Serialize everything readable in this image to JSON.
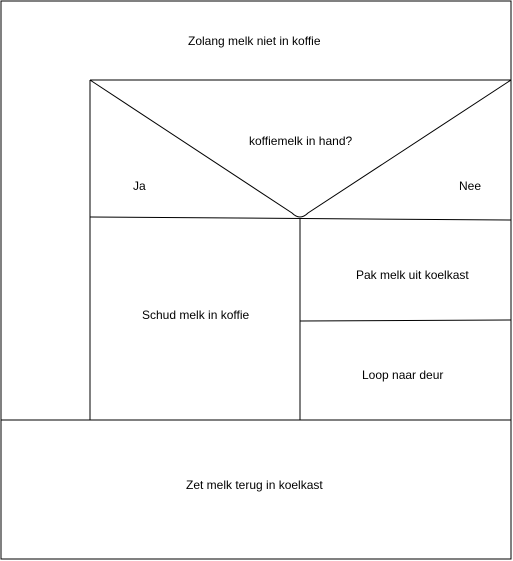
{
  "diagram": {
    "loop_label": "Zolang melk niet in koffie",
    "decision": {
      "question": "koffiemelk in hand?",
      "yes_label": "Ja",
      "no_label": "Nee"
    },
    "yes_branch": [
      "Schud melk in koffie"
    ],
    "no_branch": [
      "Pak melk uit koelkast",
      "Loop naar deur"
    ],
    "final_step": "Zet melk terug in koelkast"
  }
}
